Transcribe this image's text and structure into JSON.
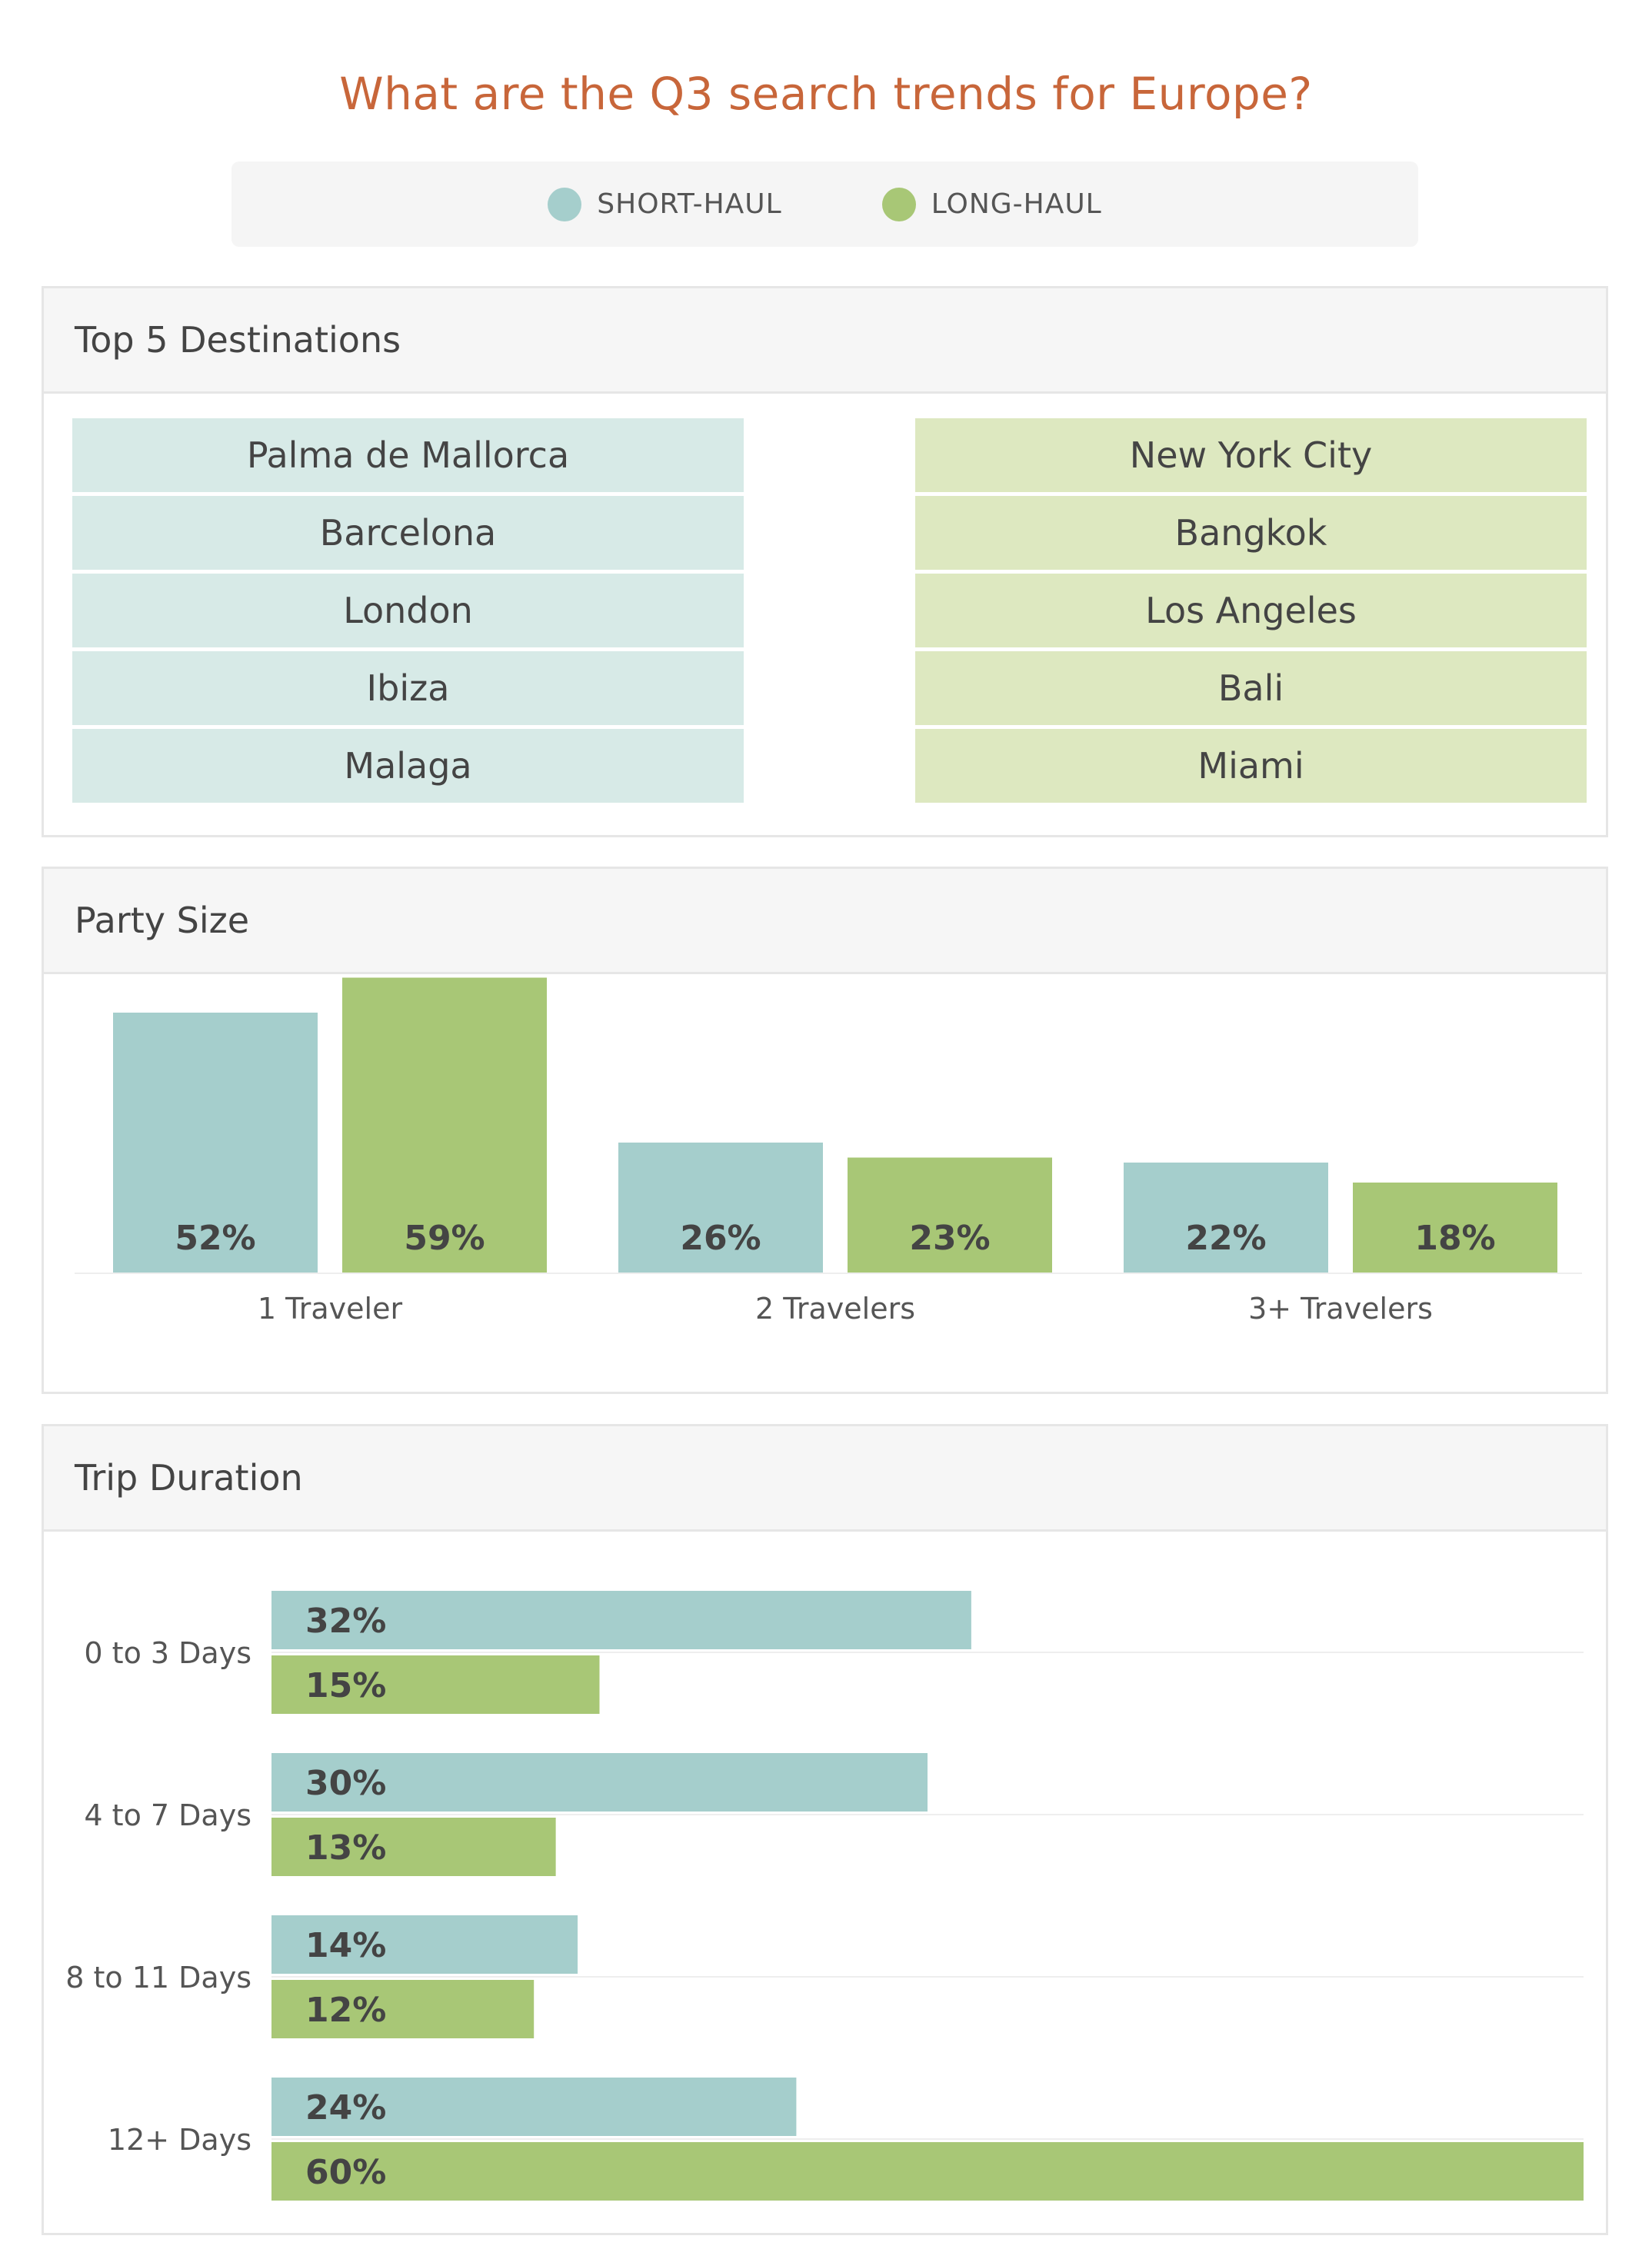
{
  "title": "What are the Q3 search trends for Europe?",
  "legend": {
    "items": [
      {
        "label": "SHORT-HAUL",
        "color": "#a5cecc"
      },
      {
        "label": "LONG-HAUL",
        "color": "#a8c776"
      }
    ]
  },
  "destinations": {
    "title": "Top 5 Destinations",
    "short_haul": [
      "Palma de Mallorca",
      "Barcelona",
      "London",
      "Ibiza",
      "Malaga"
    ],
    "long_haul": [
      "New York City",
      "Bangkok",
      "Los Angeles",
      "Bali",
      "Miami"
    ],
    "short_color": "#d7eae7",
    "long_color": "#dde8c0"
  },
  "chart_data": [
    {
      "type": "bar",
      "title": "Party Size",
      "categories": [
        "1 Traveler",
        "2 Travelers",
        "3+ Travelers"
      ],
      "series": [
        {
          "name": "SHORT-HAUL",
          "values": [
            52,
            26,
            22
          ],
          "labels": [
            "52%",
            "26%",
            "22%"
          ]
        },
        {
          "name": "LONG-HAUL",
          "values": [
            59,
            23,
            18
          ],
          "labels": [
            "59%",
            "23%",
            "18%"
          ]
        }
      ],
      "ylim": [
        0,
        60
      ],
      "legend": "top-center"
    },
    {
      "type": "bar",
      "orientation": "horizontal",
      "title": "Trip Duration",
      "categories": [
        "0 to 3 Days",
        "4 to 7 Days",
        "8 to 11 Days",
        "12+ Days"
      ],
      "series": [
        {
          "name": "SHORT-HAUL",
          "values": [
            32,
            30,
            14,
            24
          ],
          "labels": [
            "32%",
            "30%",
            "14%",
            "24%"
          ]
        },
        {
          "name": "LONG-HAUL",
          "values": [
            15,
            13,
            12,
            60
          ],
          "labels": [
            "15%",
            "13%",
            "12%",
            "60%"
          ]
        }
      ],
      "xlim": [
        0,
        60
      ],
      "legend": "top-center"
    }
  ]
}
